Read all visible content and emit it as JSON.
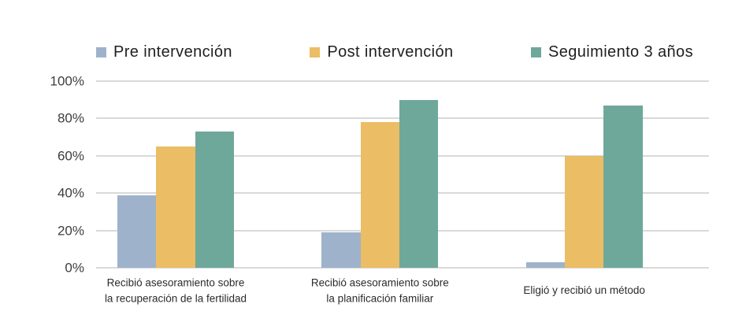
{
  "chart_data": {
    "type": "bar",
    "categories": [
      "Recibió asesoramiento sobre\nla recuperación de la fertilidad",
      "Recibió asesoramiento sobre\nla planificación familiar",
      "Eligió y recibió un método"
    ],
    "series": [
      {
        "name": "Pre intervención",
        "color": "#9fb2cb",
        "values": [
          39,
          19,
          3
        ]
      },
      {
        "name": "Post intervención",
        "color": "#ebbd64",
        "values": [
          65,
          78,
          60
        ]
      },
      {
        "name": "Seguimiento 3 años",
        "color": "#6ea89a",
        "values": [
          73,
          90,
          87
        ]
      }
    ],
    "y_ticks": [
      0,
      20,
      40,
      60,
      80,
      100
    ],
    "y_tick_suffix": "%",
    "ylim": [
      0,
      100
    ],
    "grid": true,
    "legend_position": "top",
    "colors": {
      "gridline": "#d9d9d9",
      "axis_text": "#3d3d3d",
      "category_text": "#2b2b2b",
      "legend_text": "#1f1f1f",
      "background": "#ffffff"
    }
  }
}
